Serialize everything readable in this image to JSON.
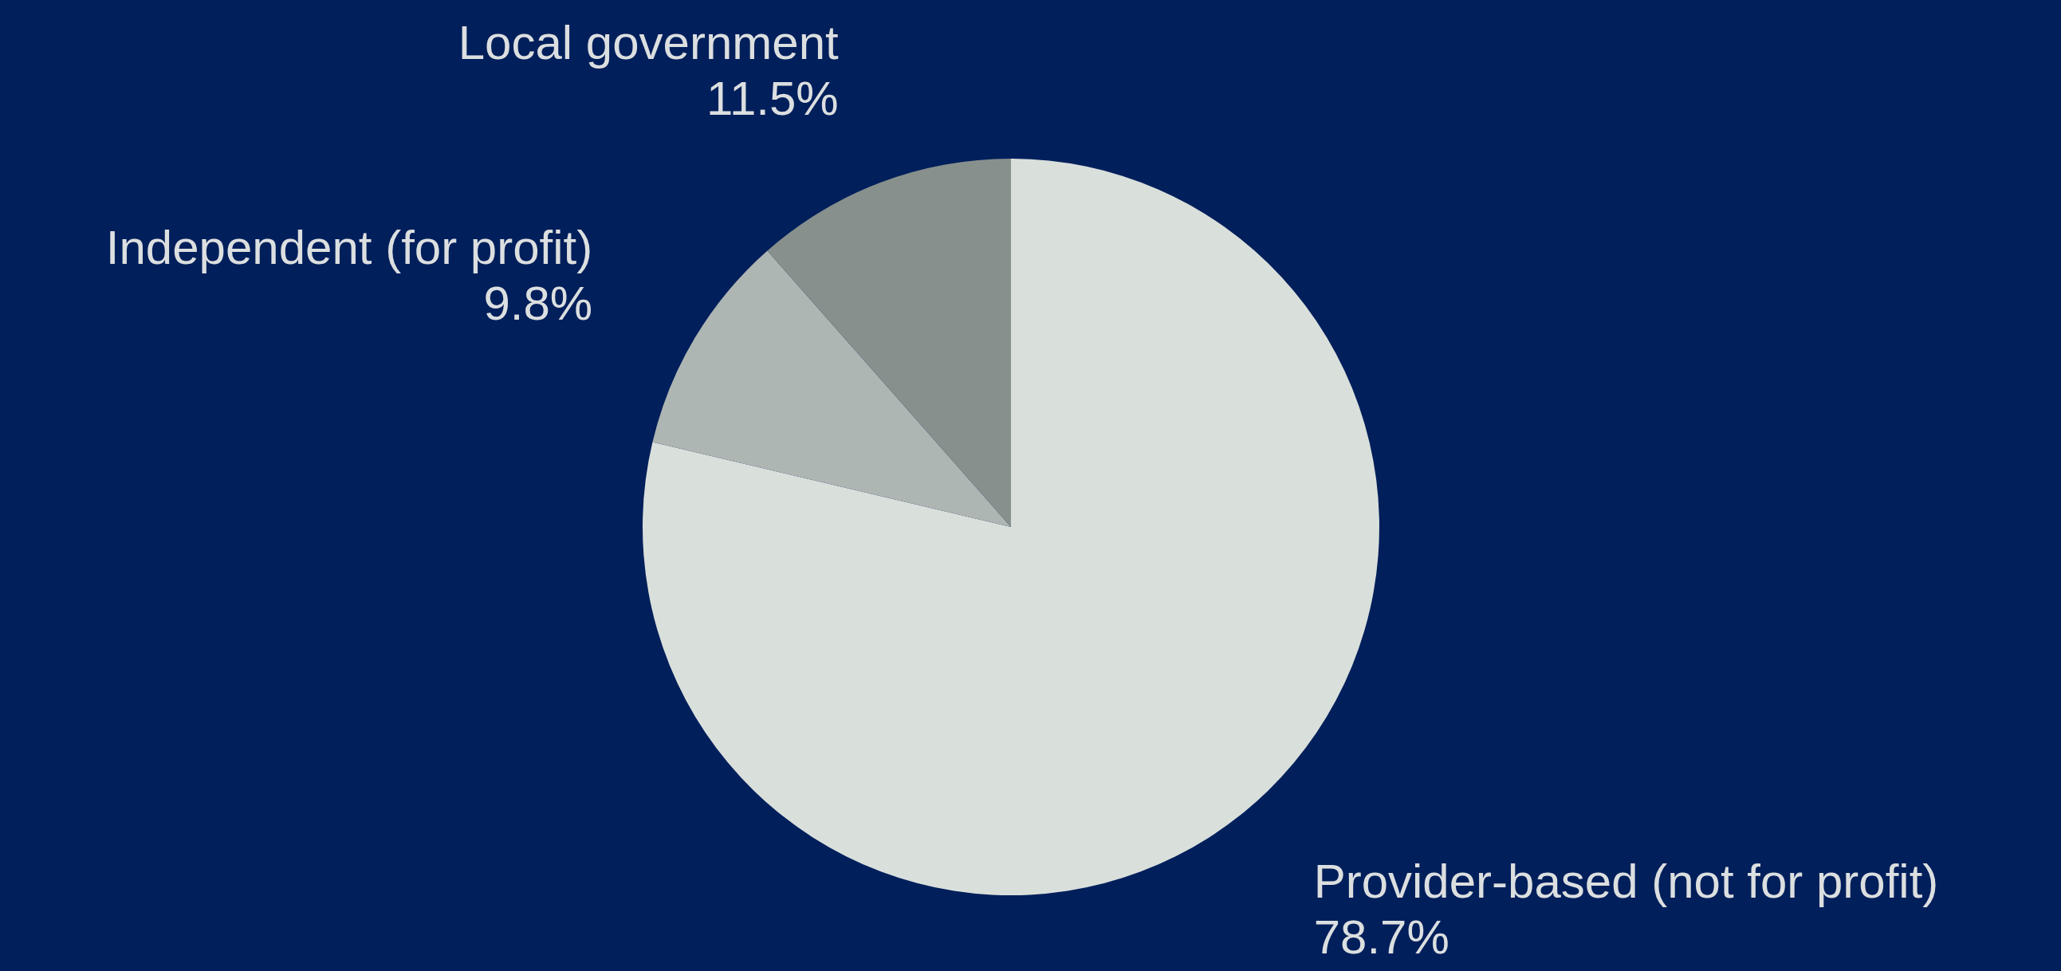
{
  "chart_data": {
    "type": "pie",
    "categories": [
      "Provider-based (not for profit)",
      "Independent (for profit)",
      "Local government"
    ],
    "values": [
      78.7,
      9.8,
      11.5
    ],
    "value_labels": [
      "78.7%",
      "9.8%",
      "11.5%"
    ],
    "colors": [
      "#d9dfdb",
      "#aeb6b3",
      "#87908d"
    ]
  }
}
